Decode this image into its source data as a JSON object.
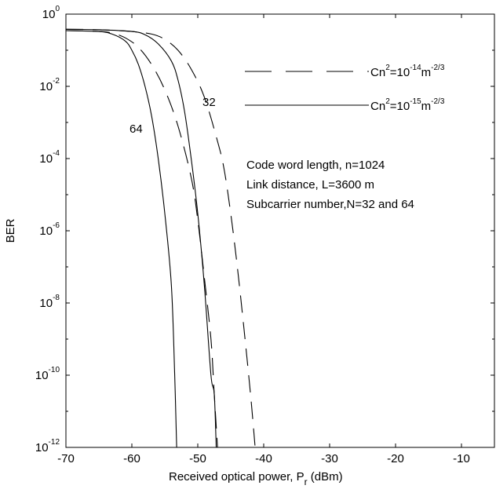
{
  "chart_data": {
    "type": "line",
    "title": "",
    "xlabel": "Received optical power, P",
    "xlabel_sub": "r",
    "xlabel_unit": " (dBm)",
    "ylabel": "BER",
    "xlim": [
      -70,
      -5
    ],
    "ylim": [
      1e-12,
      1
    ],
    "yscale": "log",
    "grid": false,
    "x_ticks": [
      -70,
      -60,
      -50,
      -40,
      -30,
      -20,
      -10
    ],
    "y_tick_exponents": [
      0,
      -2,
      -4,
      -6,
      -8,
      -10,
      -12
    ],
    "y_tick_base": "10",
    "legend": {
      "placement": "top-right",
      "entries": [
        {
          "label_base": "Cn",
          "label_sup1": "2",
          "label_mid": "=10",
          "label_sup2": "-14",
          "label_unit": "m",
          "label_sup3": "-2/3",
          "style": "dashed"
        },
        {
          "label_base": "Cn",
          "label_sup1": "2",
          "label_mid": "=10",
          "label_sup2": "-15",
          "label_unit": "m",
          "label_sup3": "-2/3",
          "style": "solid"
        }
      ]
    },
    "annotations": {
      "lines": [
        "Code word length, n=1024",
        "Link distance, L=3600 m",
        "Subcarrier number,N=32 and 64"
      ],
      "curve_labels": [
        "64",
        "32"
      ]
    },
    "series": [
      {
        "style": "solid",
        "x": [
          -70,
          -65,
          -63,
          -61,
          -60,
          -59,
          -58,
          -57,
          -56,
          -55,
          -54,
          -53.5,
          -53.2
        ],
        "y": [
          0.35,
          0.33,
          0.28,
          0.18,
          0.1,
          0.04,
          0.01,
          0.0015,
          0.0001,
          3e-06,
          3e-08,
          1e-10,
          1e-12
        ]
      },
      {
        "style": "dashed",
        "x": [
          -70,
          -65,
          -63,
          -61,
          -59,
          -57,
          -55,
          -53,
          -51,
          -50,
          -49,
          -48,
          -47.5,
          -47
        ],
        "y": [
          0.35,
          0.33,
          0.3,
          0.22,
          0.12,
          0.04,
          0.008,
          0.0008,
          3e-05,
          2e-06,
          5e-08,
          1e-09,
          3e-11,
          1e-12
        ]
      },
      {
        "style": "solid",
        "x": [
          -70,
          -65,
          -60,
          -58,
          -56,
          -54,
          -53,
          -52,
          -51,
          -50,
          -49,
          -48,
          -47.5,
          -47.2
        ],
        "y": [
          0.38,
          0.37,
          0.33,
          0.27,
          0.15,
          0.05,
          0.015,
          0.002,
          0.0001,
          3e-06,
          3e-08,
          1e-10,
          3e-11,
          1e-12
        ]
      },
      {
        "style": "dashed",
        "x": [
          -70,
          -65,
          -60,
          -57,
          -55,
          -53,
          -51,
          -49,
          -47,
          -46,
          -45,
          -44,
          -43,
          -42,
          -41.3
        ],
        "y": [
          0.38,
          0.37,
          0.33,
          0.28,
          0.2,
          0.1,
          0.03,
          0.005,
          0.0003,
          5e-05,
          3e-06,
          1e-07,
          2e-09,
          3e-11,
          1e-12
        ]
      }
    ]
  }
}
